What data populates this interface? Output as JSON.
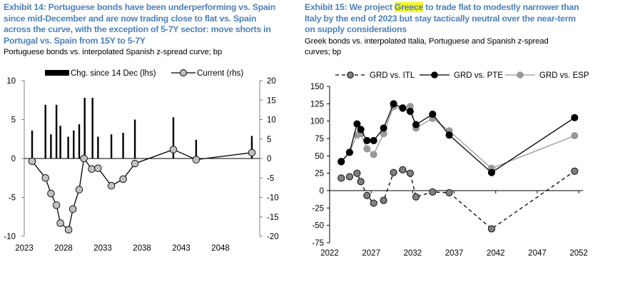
{
  "exhibit14": {
    "title_lines": [
      "Exhibit 14: Portuguese bonds have been underperforming vs. Spain",
      "since mid-December and are now trading close to flat vs. Spain",
      "across the curve, with the exception of 5-7Y sector: move shorts in",
      "Portugal vs. Spain from 15Y to 5-7Y"
    ],
    "subtitle_lines": [
      "Portuguese bonds vs. interpolated Spanish z-spread curve; bp"
    ]
  },
  "exhibit15": {
    "title_pre": "Exhibit 15: We project ",
    "title_highlight": "Greece",
    "title_post": " to trade flat to modestly narrower than",
    "title_lines": [
      "Italy by the end of 2023 but stay tactically neutral over the near-term",
      "on supply considerations"
    ],
    "highlight_color": "#f5f52a",
    "subtitle_lines": [
      "Greek bonds vs. interpolated Italia, Portuguese and Spanish z-spread",
      "curves; bp"
    ]
  },
  "chart_data": [
    {
      "type": "bar+line",
      "xlim": [
        2023,
        2053
      ],
      "xticks": [
        "2023",
        "2028",
        "2033",
        "2038",
        "2043",
        "2048"
      ],
      "ylim_left": [
        -10,
        10
      ],
      "yticks_left": [
        "10",
        "5",
        "0",
        "-5",
        "-10"
      ],
      "ylim_right": [
        -20,
        20
      ],
      "yticks_right": [
        "20",
        "15",
        "10",
        "5",
        "0",
        "-5",
        "-10",
        "-15",
        "-20"
      ],
      "legend_placement": "top",
      "series": [
        {
          "name": "Chg. since 14 Dec (lhs)",
          "kind": "bar",
          "axis": "left",
          "color": "#000000",
          "x": [
            2024.0,
            2025.7,
            2026.4,
            2027.1,
            2027.6,
            2028.6,
            2029.3,
            2030.0,
            2030.7,
            2031.7,
            2032.4,
            2034.1,
            2035.6,
            2037.1,
            2042.0,
            2044.9,
            2052.0
          ],
          "y": [
            3.6,
            6.9,
            3.1,
            6.9,
            4.2,
            2.8,
            3.6,
            4.4,
            7.8,
            7.8,
            2.8,
            3.1,
            3.3,
            5.0,
            5.3,
            2.4,
            2.9
          ]
        },
        {
          "name": "Current (rhs)",
          "kind": "line",
          "axis": "right",
          "color": "#000000",
          "marker_fill": "#c0c0c0",
          "x": [
            2024.0,
            2025.7,
            2026.4,
            2027.1,
            2027.6,
            2028.65,
            2029.2,
            2030.0,
            2030.6,
            2031.6,
            2032.4,
            2034.1,
            2035.6,
            2037.1,
            2042.0,
            2044.9,
            2052.0
          ],
          "y": [
            -0.7,
            -5.0,
            -9.0,
            -12.0,
            -16.6,
            -18.3,
            -13.0,
            -8.0,
            0.0,
            -2.7,
            -2.5,
            -7.0,
            -5.3,
            -1.3,
            2.3,
            -0.3,
            1.5
          ]
        }
      ]
    },
    {
      "type": "line",
      "xlim": [
        2022,
        2052.5
      ],
      "xticks": [
        "2022",
        "2027",
        "2032",
        "2037",
        "2042",
        "2047",
        "2052"
      ],
      "ylim": [
        -75,
        150
      ],
      "yticks": [
        "150",
        "125",
        "100",
        "75",
        "50",
        "25",
        "0",
        "-25",
        "-50",
        "-75"
      ],
      "legend_placement": "top",
      "series": [
        {
          "name": "GRD vs. ITL",
          "color": "#000000",
          "marker_fill": "#808080",
          "dash": true,
          "x": [
            2023.4,
            2024.4,
            2025.3,
            2025.75,
            2026.5,
            2027.3,
            2028.5,
            2029.7,
            2030.8,
            2031.7,
            2032.4,
            2034.4,
            2036.4,
            2041.5,
            2051.5
          ],
          "y": [
            18,
            20,
            25,
            13,
            -7,
            -18,
            -14,
            26,
            30,
            25,
            -9,
            -2,
            -3,
            -55,
            28
          ]
        },
        {
          "name": "GRD vs. PTE",
          "color": "#000000",
          "marker_fill": "#000000",
          "dash": false,
          "x": [
            2023.4,
            2024.4,
            2025.3,
            2025.75,
            2026.5,
            2027.3,
            2028.5,
            2029.7,
            2030.8,
            2031.7,
            2032.4,
            2034.4,
            2036.4,
            2041.5,
            2051.5
          ],
          "y": [
            42,
            55,
            96,
            88,
            72,
            72,
            90,
            125,
            119,
            114,
            95,
            110,
            80,
            26,
            105
          ]
        },
        {
          "name": "GRD vs. ESP",
          "color": "#999999",
          "marker_fill": "#999999",
          "dash": false,
          "x": [
            2023.4,
            2024.4,
            2025.3,
            2025.75,
            2026.5,
            2027.3,
            2028.5,
            2029.7,
            2030.8,
            2031.7,
            2032.4,
            2034.4,
            2036.4,
            2041.5,
            2051.5
          ],
          "y": [
            41,
            55,
            80,
            82,
            60,
            52,
            82,
            121,
            118,
            121,
            90,
            104,
            86,
            32,
            79
          ]
        }
      ]
    }
  ]
}
